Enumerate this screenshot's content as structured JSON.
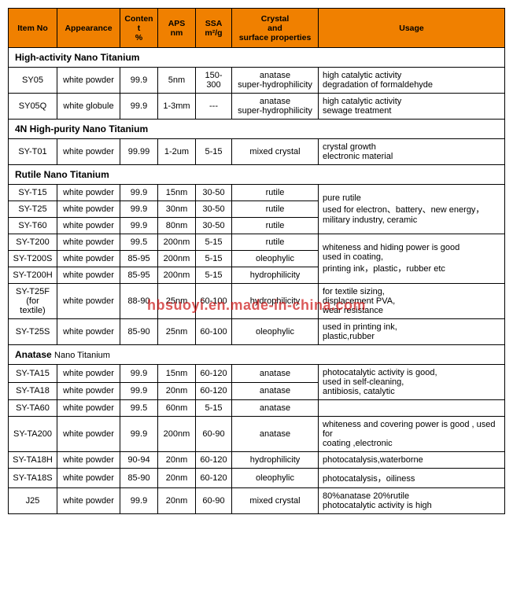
{
  "headers": {
    "itemNo": "Item No",
    "appearance": "Appearance",
    "content": "Content\n%",
    "aps": "APS\nnm",
    "ssa": "SSA\nm²/g",
    "crystal": "Crystal\nand\nsurface properties",
    "usage": "Usage"
  },
  "watermark": "hbsuoyi.en.made-in-china.com",
  "sections": [
    {
      "title": "High-activity Nano Titanium",
      "rows": [
        {
          "item": "SY05",
          "app": "white powder",
          "cont": "99.9",
          "aps": "5nm",
          "ssa": "150-300",
          "crys": "anatase\nsuper-hydrophilicity",
          "usage": "high catalytic activity\ndegradation of formaldehyde"
        },
        {
          "item": "SY05Q",
          "app": "white globule",
          "cont": "99.9",
          "aps": "1-3mm",
          "ssa": "---",
          "crys": "anatase\nsuper-hydrophilicity",
          "usage": "high catalytic activity\nsewage treatment"
        }
      ]
    },
    {
      "title": "4N High-purity Nano Titanium",
      "rows": [
        {
          "item": "SY-T01",
          "app": "white powder",
          "cont": "99.99",
          "aps": "1-2um",
          "ssa": "5-15",
          "crys": "mixed crystal",
          "usage": "crystal growth\nelectronic material"
        }
      ]
    },
    {
      "title": "Rutile Nano Titanium",
      "rows": [
        {
          "item": "SY-T15",
          "app": "white powder",
          "cont": "99.9",
          "aps": "15nm",
          "ssa": "30-50",
          "crys": "rutile",
          "usage": "pure rutile\nused for electron、battery、new energy，\nmilitary industry, ceramic",
          "usageRowspan": 3
        },
        {
          "item": "SY-T25",
          "app": "white powder",
          "cont": "99.9",
          "aps": "30nm",
          "ssa": "30-50",
          "crys": "rutile"
        },
        {
          "item": "SY-T60",
          "app": "white powder",
          "cont": "99.9",
          "aps": "80nm",
          "ssa": "30-50",
          "crys": "rutile"
        },
        {
          "item": "SY-T200",
          "app": "white powder",
          "cont": "99.5",
          "aps": "200nm",
          "ssa": "5-15",
          "crys": "rutile",
          "usage": "whiteness and hiding power is good\nused in coating,\nprinting ink，plastic，rubber etc",
          "usageRowspan": 3
        },
        {
          "item": "SY-T200S",
          "app": "white powder",
          "cont": "85-95",
          "aps": "200nm",
          "ssa": "5-15",
          "crys": "oleophylic"
        },
        {
          "item": "SY-T200H",
          "app": "white powder",
          "cont": "85-95",
          "aps": "200nm",
          "ssa": "5-15",
          "crys": "hydrophilicity"
        },
        {
          "item": "SY-T25F\n(for textile)",
          "app": "white powder",
          "cont": "88-90",
          "aps": "25nm",
          "ssa": "60-100",
          "crys": "hydrophilicity",
          "usage": "for textile sizing,\ndisplacement PVA,\nwear resistance"
        },
        {
          "item": "SY-T25S",
          "app": "white powder",
          "cont": "85-90",
          "aps": "25nm",
          "ssa": "60-100",
          "crys": "oleophylic",
          "usage": "used in printing ink,\nplastic,rubber"
        }
      ]
    },
    {
      "title": "Anatase Nano Titanium",
      "titleSmallPart": "Nano Titanium",
      "titleBoldPart": "Anatase",
      "rows": [
        {
          "item": "SY-TA15",
          "app": "white powder",
          "cont": "99.9",
          "aps": "15nm",
          "ssa": "60-120",
          "crys": "anatase",
          "usage": "photocatalytic activity is good,\nused in self-cleaning,\nantibiosis, catalytic",
          "usageRowspan": 2
        },
        {
          "item": "SY-TA18",
          "app": "white powder",
          "cont": "99.9",
          "aps": "20nm",
          "ssa": "60-120",
          "crys": "anatase"
        },
        {
          "item": "SY-TA60",
          "app": "white powder",
          "cont": "99.5",
          "aps": "60nm",
          "ssa": "5-15",
          "crys": "anatase",
          "usage": ""
        },
        {
          "item": "SY-TA200",
          "app": "white powder",
          "cont": "99.9",
          "aps": "200nm",
          "ssa": "60-90",
          "crys": "anatase",
          "usage": "whiteness and covering power is good , used for\ncoating ,electronic"
        },
        {
          "item": "SY-TA18H",
          "app": "white powder",
          "cont": "90-94",
          "aps": "20nm",
          "ssa": "60-120",
          "crys": "hydrophilicity",
          "usage": "photocatalysis,waterborne"
        },
        {
          "item": "SY-TA18S",
          "app": "white powder",
          "cont": "85-90",
          "aps": "20nm",
          "ssa": "60-120",
          "crys": "oleophylic",
          "usage": "photocatalysis，oiliness"
        },
        {
          "item": "J25",
          "app": "white powder",
          "cont": "99.9",
          "aps": "20nm",
          "ssa": "60-90",
          "crys": "mixed crystal",
          "usage": "80%anatase  20%rutile\nphotocatalytic activity is high"
        }
      ]
    }
  ]
}
